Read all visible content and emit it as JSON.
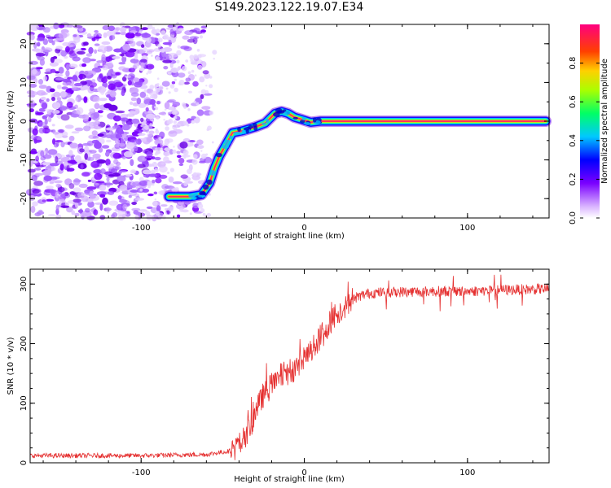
{
  "figure": {
    "title": "S149.2023.122.19.07.E34"
  },
  "chart_data": [
    {
      "type": "heatmap",
      "xlabel": "Height of straight line (km)",
      "ylabel": "Frequency (Hz)",
      "xlim": [
        -168,
        150
      ],
      "ylim": [
        -25,
        25
      ],
      "xticks": [
        -100,
        0,
        100
      ],
      "yticks": [
        -20,
        -10,
        0,
        10,
        20
      ],
      "colorbar": {
        "label": "Normalized spectral amplitude",
        "range": [
          0,
          1
        ],
        "ticks": [
          0.0,
          0.2,
          0.4,
          0.6,
          0.8
        ]
      },
      "ridge": {
        "x": [
          -83,
          -70,
          -63,
          -58,
          -55,
          -52,
          -48,
          -44,
          -38,
          -30,
          -24,
          -18,
          -14,
          -10,
          -6,
          -2,
          4,
          10,
          16,
          30,
          60,
          100,
          148
        ],
        "y": [
          -19.5,
          -19.5,
          -19,
          -16,
          -12,
          -9,
          -6,
          -3,
          -2.5,
          -1.5,
          -0.5,
          2,
          2.5,
          2,
          1,
          0.5,
          -0.3,
          0,
          0,
          0,
          0,
          0,
          0
        ]
      }
    },
    {
      "type": "line",
      "xlabel": "Height of straight line (km)",
      "ylabel": "SNR (10 * v/v)",
      "xlim": [
        -168,
        150
      ],
      "ylim": [
        0,
        325
      ],
      "xticks": [
        -100,
        0,
        100
      ],
      "yticks": [
        0,
        100,
        200,
        300
      ],
      "color": "#e53030",
      "trend": {
        "x": [
          -168,
          -100,
          -60,
          -45,
          -38,
          -32,
          -25,
          -15,
          -5,
          5,
          12,
          18,
          25,
          32,
          40,
          60,
          80,
          100,
          120,
          150
        ],
        "y": [
          12,
          12,
          14,
          20,
          35,
          70,
          115,
          145,
          160,
          190,
          220,
          245,
          265,
          278,
          285,
          287,
          288,
          288,
          290,
          292
        ]
      }
    }
  ]
}
